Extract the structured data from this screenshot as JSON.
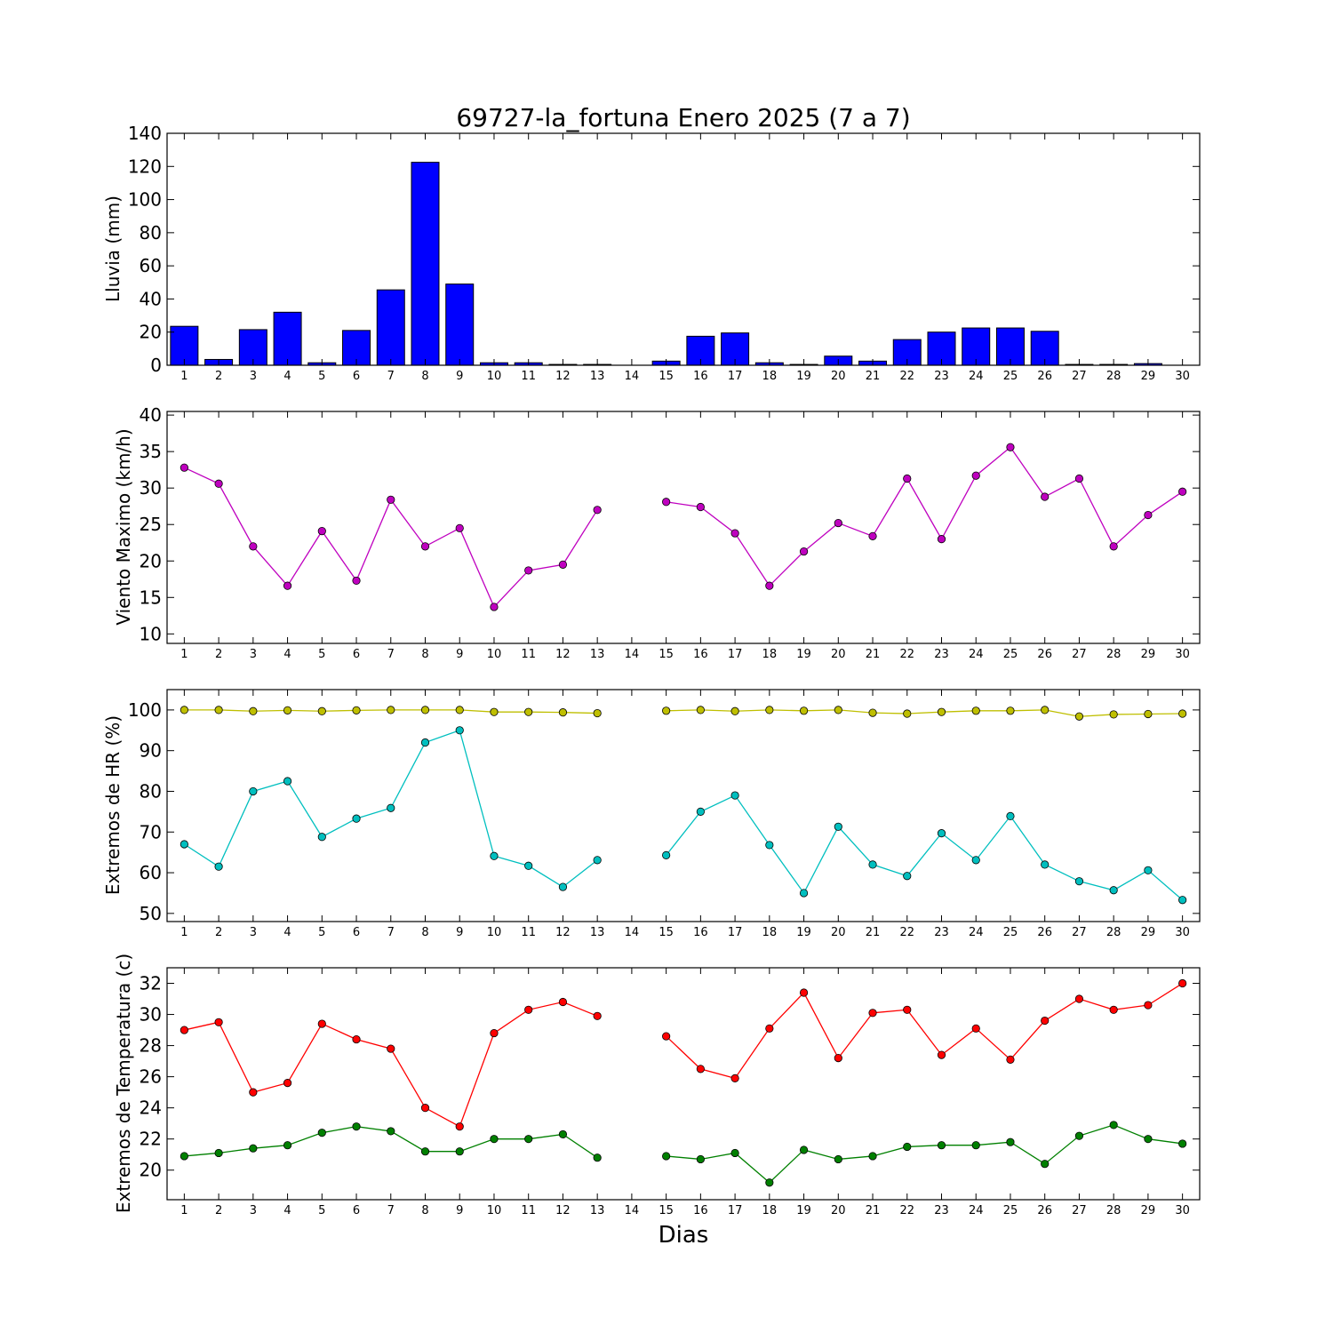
{
  "title": "69727-la_fortuna Enero 2025  (7 a 7)",
  "xlabel": "Dias",
  "x_ticks": [
    "1",
    "2",
    "3",
    "4",
    "5",
    "6",
    "7",
    "8",
    "9",
    "10",
    "11",
    "12",
    "13",
    "14",
    "15",
    "16",
    "17",
    "18",
    "19",
    "20",
    "21",
    "22",
    "23",
    "24",
    "25",
    "26",
    "27",
    "28",
    "29",
    "30"
  ],
  "chart_data": [
    {
      "type": "bar",
      "ylabel": "Lluvia (mm)",
      "ylim": [
        0,
        140
      ],
      "yticks": [
        0,
        20,
        40,
        60,
        80,
        100,
        120,
        140
      ],
      "x": [
        1,
        2,
        3,
        4,
        5,
        6,
        7,
        8,
        9,
        10,
        11,
        12,
        13,
        14,
        15,
        16,
        17,
        18,
        19,
        20,
        21,
        22,
        23,
        24,
        25,
        26,
        27,
        28,
        29,
        30
      ],
      "values": [
        23.5,
        3.5,
        21.5,
        32.0,
        1.5,
        21.0,
        45.5,
        122.5,
        49.0,
        1.5,
        1.5,
        0.5,
        0.5,
        null,
        2.5,
        17.5,
        19.5,
        1.5,
        0.5,
        5.5,
        2.5,
        15.5,
        20.0,
        22.5,
        22.5,
        20.5,
        0.5,
        0.5,
        1.0,
        null
      ],
      "colors": {
        "bar": "#0000ff"
      }
    },
    {
      "type": "line",
      "ylabel": "Viento Maximo (km/h)",
      "ylim": [
        8.7,
        40.5
      ],
      "yticks": [
        10,
        15,
        20,
        25,
        30,
        35,
        40
      ],
      "x": [
        1,
        2,
        3,
        4,
        5,
        6,
        7,
        8,
        9,
        10,
        11,
        12,
        13,
        14,
        15,
        16,
        17,
        18,
        19,
        20,
        21,
        22,
        23,
        24,
        25,
        26,
        27,
        28,
        29,
        30
      ],
      "series": [
        {
          "values": [
            32.8,
            30.6,
            22.0,
            16.6,
            24.1,
            17.3,
            28.4,
            22.0,
            24.5,
            13.7,
            18.7,
            19.5,
            27.0,
            null,
            28.1,
            27.4,
            23.8,
            16.6,
            21.3,
            25.2,
            23.4,
            31.3,
            23.0,
            31.7,
            35.6,
            28.8,
            31.3,
            22.0,
            26.3,
            29.5
          ],
          "color": "#bf00bf"
        }
      ]
    },
    {
      "type": "line",
      "ylabel": "Extremos de HR (%)",
      "ylim": [
        48,
        105
      ],
      "yticks": [
        50,
        60,
        70,
        80,
        90,
        100
      ],
      "x": [
        1,
        2,
        3,
        4,
        5,
        6,
        7,
        8,
        9,
        10,
        11,
        12,
        13,
        14,
        15,
        16,
        17,
        18,
        19,
        20,
        21,
        22,
        23,
        24,
        25,
        26,
        27,
        28,
        29,
        30
      ],
      "series": [
        {
          "values": [
            100.0,
            100.0,
            99.7,
            99.9,
            99.7,
            99.9,
            100.0,
            100.0,
            100.0,
            99.5,
            99.5,
            99.4,
            99.2,
            null,
            99.8,
            100.0,
            99.7,
            100.0,
            99.8,
            100.0,
            99.3,
            99.1,
            99.5,
            99.8,
            99.8,
            100.0,
            98.4,
            98.9,
            99.0,
            99.1
          ],
          "color": "#bfbf00"
        },
        {
          "values": [
            67.0,
            61.5,
            80.0,
            82.5,
            68.8,
            73.3,
            75.9,
            92.0,
            95.0,
            64.1,
            61.7,
            56.5,
            63.1,
            null,
            64.3,
            75.0,
            79.0,
            66.8,
            55.0,
            71.3,
            62.0,
            59.2,
            69.7,
            63.1,
            73.9,
            62.0,
            57.9,
            55.7,
            60.6,
            53.3
          ],
          "color": "#00bfbf"
        }
      ]
    },
    {
      "type": "line",
      "ylabel": "Extremos de Temperatura (c)",
      "ylim": [
        18.1,
        33.0
      ],
      "yticks": [
        20,
        22,
        24,
        26,
        28,
        30,
        32
      ],
      "x": [
        1,
        2,
        3,
        4,
        5,
        6,
        7,
        8,
        9,
        10,
        11,
        12,
        13,
        14,
        15,
        16,
        17,
        18,
        19,
        20,
        21,
        22,
        23,
        24,
        25,
        26,
        27,
        28,
        29,
        30
      ],
      "series": [
        {
          "values": [
            29.0,
            29.5,
            25.0,
            25.6,
            29.4,
            28.4,
            27.8,
            24.0,
            22.8,
            28.8,
            30.3,
            30.8,
            29.9,
            null,
            28.6,
            26.5,
            25.9,
            29.1,
            31.4,
            27.2,
            30.1,
            30.3,
            27.4,
            29.1,
            27.1,
            29.6,
            31.0,
            30.3,
            30.6,
            32.0
          ],
          "color": "#ff0000"
        },
        {
          "values": [
            20.9,
            21.1,
            21.4,
            21.6,
            22.4,
            22.8,
            22.5,
            21.2,
            21.2,
            22.0,
            22.0,
            22.3,
            20.8,
            null,
            20.9,
            20.7,
            21.1,
            19.2,
            21.3,
            20.7,
            20.9,
            21.5,
            21.6,
            21.6,
            21.8,
            20.4,
            22.2,
            22.9,
            22.0,
            21.7
          ],
          "color": "#008000"
        }
      ]
    }
  ]
}
